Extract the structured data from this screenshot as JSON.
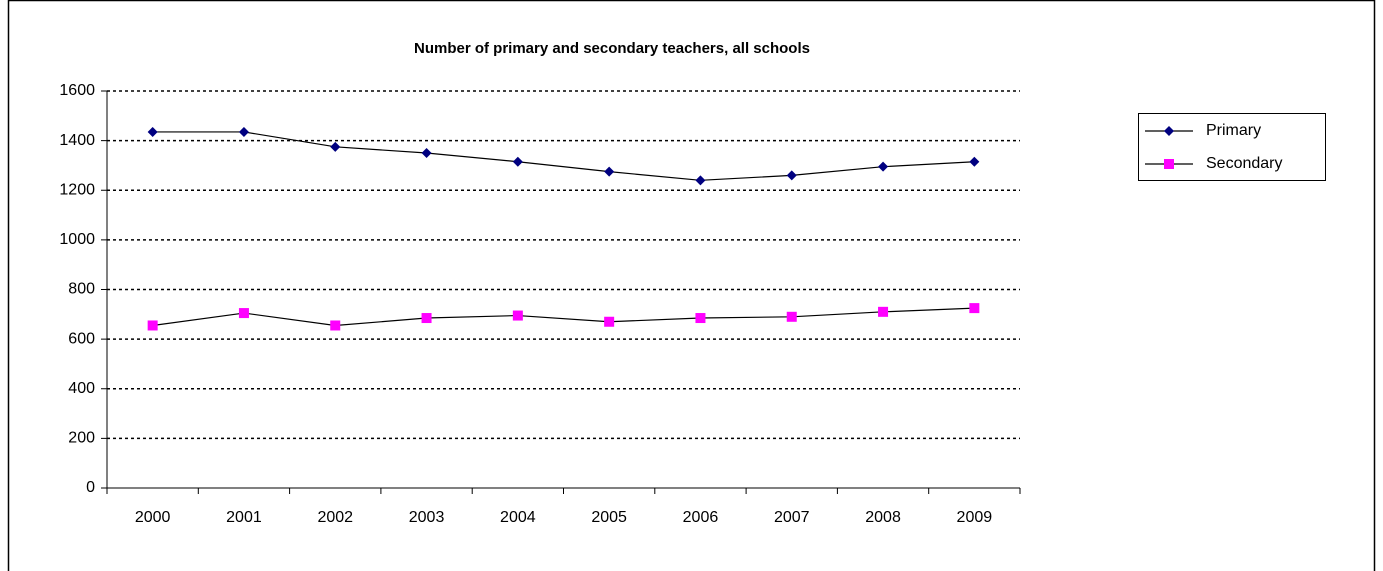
{
  "chart_data": {
    "type": "line",
    "title": "Number of primary and secondary teachers, all schools",
    "categories": [
      "2000",
      "2001",
      "2002",
      "2003",
      "2004",
      "2005",
      "2006",
      "2007",
      "2008",
      "2009"
    ],
    "series": [
      {
        "name": "Primary",
        "color": "#000080",
        "marker": "diamond",
        "values": [
          1435,
          1435,
          1375,
          1350,
          1315,
          1275,
          1240,
          1260,
          1295,
          1315
        ]
      },
      {
        "name": "Secondary",
        "color": "#ff00ff",
        "marker": "square",
        "values": [
          655,
          705,
          655,
          685,
          695,
          670,
          685,
          690,
          710,
          725
        ]
      }
    ],
    "line_color": "#000000",
    "ylim": [
      0,
      1600
    ],
    "yticks": [
      0,
      200,
      400,
      600,
      800,
      1000,
      1200,
      1400,
      1600
    ],
    "grid": true,
    "legend": "right"
  }
}
